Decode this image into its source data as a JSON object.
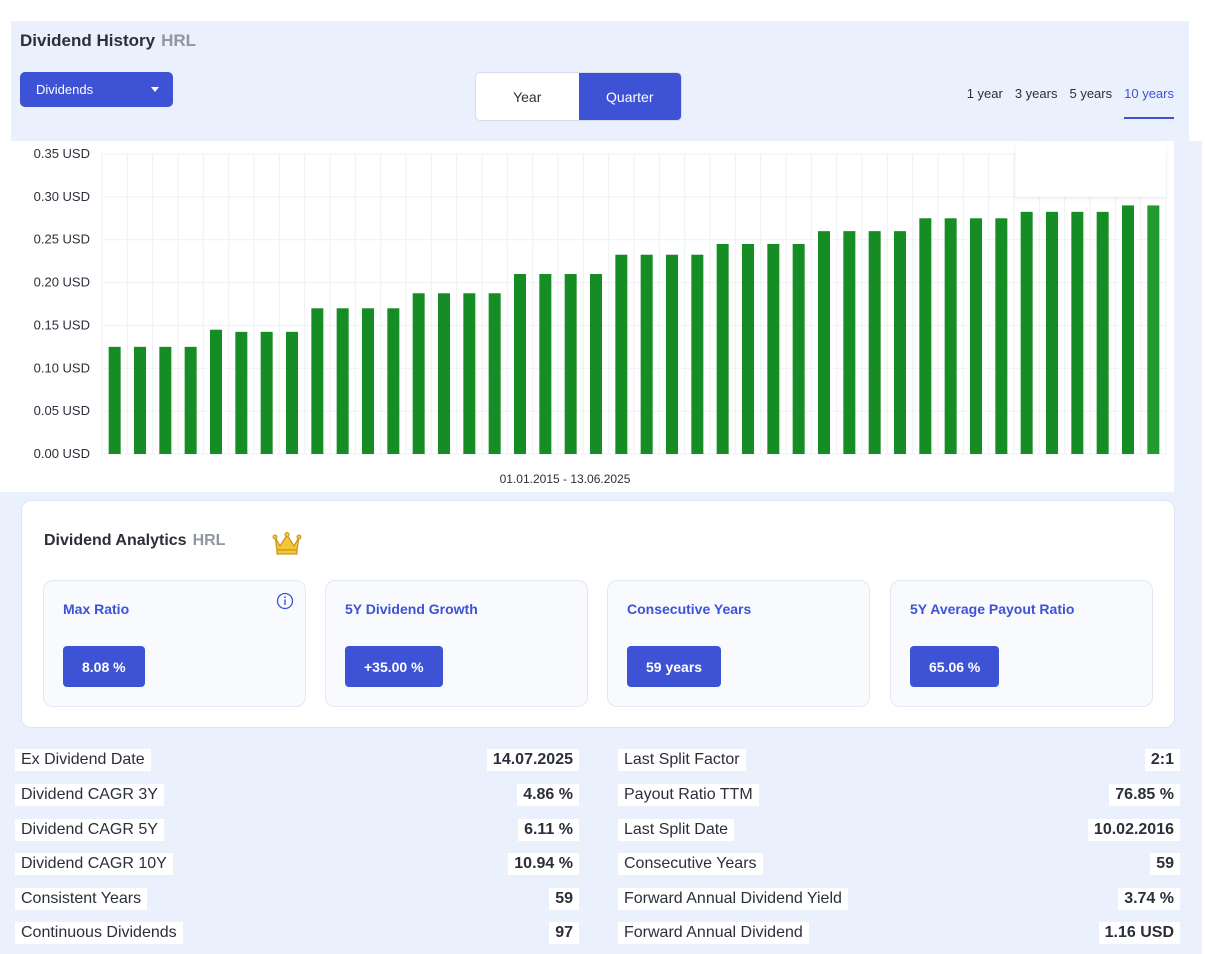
{
  "header": {
    "title": "Dividend History",
    "ticker": "HRL",
    "dropdown_value": "Dividends",
    "period_toggle": [
      "Year",
      "Quarter"
    ],
    "period_selected": "Quarter",
    "ranges": [
      "1 year",
      "3 years",
      "5 years",
      "10 years"
    ],
    "range_selected": "10 years",
    "date_range": "01.01.2015 - 13.06.2025"
  },
  "colors": {
    "accent": "#3d52d5",
    "bar": "#168c24",
    "panel_bg": "#eaf0fc"
  },
  "chart_data": {
    "type": "bar",
    "xlabel": "01.01.2015 - 13.06.2025",
    "ylabel": "",
    "ylim": [
      0,
      0.35
    ],
    "yticks": [
      "0.00 USD",
      "0.05 USD",
      "0.10 USD",
      "0.15 USD",
      "0.20 USD",
      "0.25 USD",
      "0.30 USD",
      "0.35 USD"
    ],
    "grid": true,
    "series": [
      {
        "values": [
          0.125,
          0.125,
          0.125,
          0.125,
          0.145,
          0.1425,
          0.1425,
          0.1425,
          0.17,
          0.17,
          0.17,
          0.17,
          0.1875,
          0.1875,
          0.1875,
          0.1875,
          0.21,
          0.21,
          0.21,
          0.21,
          0.2325,
          0.2325,
          0.2325,
          0.2325,
          0.245,
          0.245,
          0.245,
          0.245,
          0.26,
          0.26,
          0.26,
          0.26,
          0.275,
          0.275,
          0.275,
          0.275,
          0.2825,
          0.2825,
          0.2825,
          0.2825,
          0.29,
          0.29
        ]
      }
    ]
  },
  "analytics": {
    "title": "Dividend Analytics",
    "ticker": "HRL",
    "crown_icon": "crown-icon",
    "cards": [
      {
        "label": "Max Ratio",
        "value": "8.08 %"
      },
      {
        "label": "5Y Dividend Growth",
        "value": "+35.00 %"
      },
      {
        "label": "Consecutive Years",
        "value": "59 years"
      },
      {
        "label": "5Y Average Payout Ratio",
        "value": "65.06 %"
      }
    ]
  },
  "stats": {
    "left": [
      {
        "label": "Ex Dividend Date",
        "value": "14.07.2025"
      },
      {
        "label": "Dividend CAGR 3Y",
        "value": "4.86 %"
      },
      {
        "label": "Dividend CAGR 5Y",
        "value": "6.11 %"
      },
      {
        "label": "Dividend CAGR 10Y",
        "value": "10.94 %"
      },
      {
        "label": "Consistent Years",
        "value": "59"
      },
      {
        "label": "Continuous Dividends",
        "value": "97"
      }
    ],
    "right": [
      {
        "label": "Last Split Factor",
        "value": "2:1"
      },
      {
        "label": "Payout Ratio TTM",
        "value": "76.85 %"
      },
      {
        "label": "Last Split Date",
        "value": "10.02.2016"
      },
      {
        "label": "Consecutive Years",
        "value": "59"
      },
      {
        "label": "Forward Annual Dividend Yield",
        "value": "3.74 %"
      },
      {
        "label": "Forward Annual Dividend",
        "value": "1.16 USD"
      }
    ]
  }
}
